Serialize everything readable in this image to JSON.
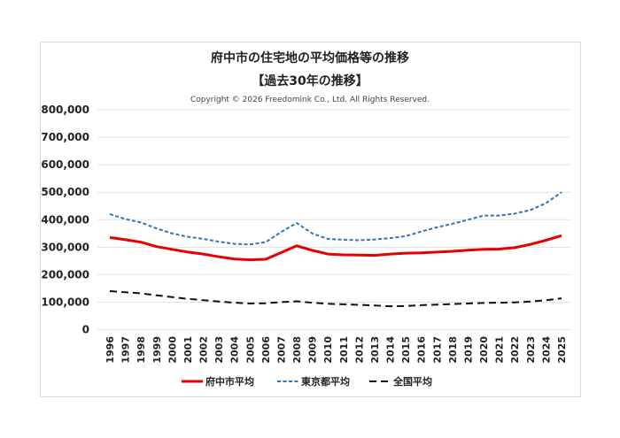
{
  "chart_data": {
    "type": "line",
    "title": "府中市の住宅地の平均価格等の推移",
    "subtitle": "【過去30年の推移】",
    "copyright": "Copyright © 2026 Freedomink Co., Ltd. All Rights Reserved.",
    "xlabel": "",
    "ylabel": "",
    "ylim": [
      0,
      800000
    ],
    "yticks": [
      "0",
      "100,000",
      "200,000",
      "300,000",
      "400,000",
      "500,000",
      "600,000",
      "700,000",
      "800,000"
    ],
    "grid": true,
    "legend_position": "bottom",
    "categories": [
      "1996",
      "1997",
      "1998",
      "1999",
      "2000",
      "2001",
      "2002",
      "2003",
      "2004",
      "2005",
      "2006",
      "2007",
      "2008",
      "2009",
      "2010",
      "2011",
      "2012",
      "2013",
      "2014",
      "2015",
      "2016",
      "2017",
      "2018",
      "2019",
      "2020",
      "2021",
      "2022",
      "2023",
      "2024",
      "2025"
    ],
    "series": [
      {
        "name": "府中市平均",
        "color": "#e60000",
        "style": "solid",
        "values": [
          335000,
          327000,
          318000,
          302000,
          292000,
          282000,
          275000,
          265000,
          257000,
          254000,
          256000,
          280000,
          305000,
          288000,
          275000,
          272000,
          271000,
          270000,
          275000,
          278000,
          279000,
          282000,
          285000,
          289000,
          292000,
          293000,
          298000,
          310000,
          325000,
          342000
        ]
      },
      {
        "name": "東京都平均",
        "color": "#2e75b6",
        "style": "dotted",
        "values": [
          420000,
          402000,
          390000,
          368000,
          350000,
          338000,
          330000,
          320000,
          312000,
          310000,
          318000,
          355000,
          388000,
          350000,
          330000,
          327000,
          325000,
          328000,
          333000,
          340000,
          357000,
          372000,
          385000,
          400000,
          415000,
          415000,
          422000,
          435000,
          460000,
          500000
        ]
      },
      {
        "name": "全国平均",
        "color": "#111111",
        "style": "dashed",
        "values": [
          140000,
          136000,
          132000,
          125000,
          118000,
          112000,
          107000,
          102000,
          98000,
          95000,
          96000,
          100000,
          103000,
          98000,
          94000,
          92000,
          90000,
          88000,
          85000,
          86000,
          89000,
          91000,
          93000,
          95000,
          97000,
          98000,
          99000,
          102000,
          107000,
          114000
        ]
      }
    ]
  }
}
